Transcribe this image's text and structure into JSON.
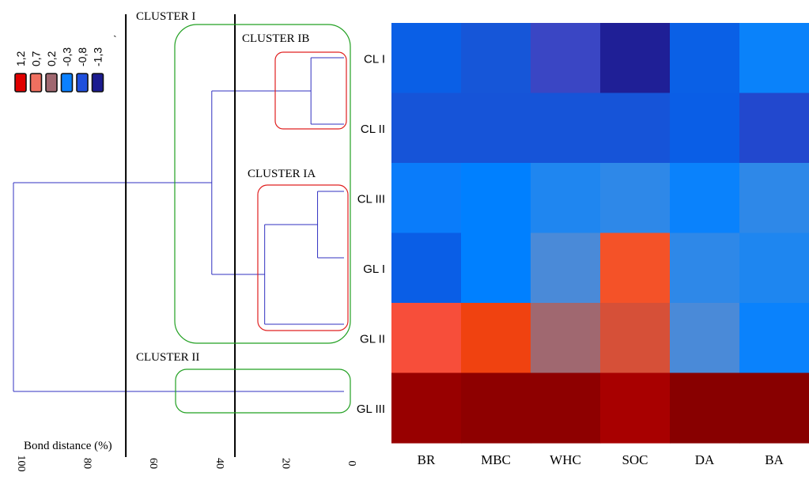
{
  "chart_data": [
    {
      "type": "dendrogram",
      "xlabel": "Bond distance (%)",
      "x_ticks": [
        100,
        80,
        60,
        40,
        20,
        0
      ],
      "xlim": [
        100,
        0
      ],
      "leaves": [
        "CL I",
        "CL II",
        "CL III",
        "GL I",
        "GL II",
        "GL III"
      ],
      "merges": [
        {
          "members": [
            "CL I",
            "CL II"
          ],
          "distance": 10
        },
        {
          "members": [
            "CL III",
            "GL I"
          ],
          "distance": 8
        },
        {
          "members": [
            "CL III",
            "GL I",
            "GL II"
          ],
          "distance": 24
        },
        {
          "members": [
            "CL I",
            "CL II",
            "CL III",
            "GL I",
            "GL II"
          ],
          "distance": 40
        },
        {
          "members": [
            "CL I",
            "CL II",
            "CL III",
            "GL I",
            "GL II",
            "GL III"
          ],
          "distance": 100
        }
      ],
      "cut_lines": [
        66,
        33
      ],
      "clusters": [
        {
          "label": "CLUSTER I",
          "members": [
            "CL I",
            "CL II",
            "CL III",
            "GL I",
            "GL II"
          ]
        },
        {
          "label": "CLUSTER IB",
          "members": [
            "CL I",
            "CL II"
          ]
        },
        {
          "label": "CLUSTER IA",
          "members": [
            "CL III",
            "GL I",
            "GL II"
          ]
        },
        {
          "label": "CLUSTER II",
          "members": [
            "GL III"
          ]
        }
      ],
      "stray_mark": "ˎ",
      "legend": [
        {
          "label": "1,2",
          "color": "#e00000"
        },
        {
          "label": "0,7",
          "color": "#f07060"
        },
        {
          "label": "0,2",
          "color": "#a06870"
        },
        {
          "label": "-0,3",
          "color": "#0a80ff"
        },
        {
          "label": "-0,8",
          "color": "#1f4fdc"
        },
        {
          "label": "-1,3",
          "color": "#1c1c90"
        }
      ]
    },
    {
      "type": "heatmap",
      "rows": [
        "CL I",
        "CL II",
        "CL III",
        "GL I",
        "GL II",
        "GL III"
      ],
      "columns": [
        "BR",
        "MBC",
        "WHC",
        "SOC",
        "DA",
        "BA"
      ],
      "values": [
        [
          -0.7,
          -0.8,
          -1.0,
          -1.3,
          -0.7,
          -0.4
        ],
        [
          -0.8,
          -0.8,
          -0.8,
          -0.8,
          -0.7,
          -0.9
        ],
        [
          -0.4,
          -0.3,
          -0.2,
          -0.1,
          -0.3,
          -0.1
        ],
        [
          -0.7,
          -0.3,
          0.0,
          0.8,
          -0.1,
          -0.2
        ],
        [
          0.8,
          0.9,
          0.2,
          0.6,
          0.0,
          -0.3
        ],
        [
          1.5,
          1.6,
          1.6,
          1.4,
          1.6,
          1.6
        ]
      ],
      "cell_colors": [
        [
          "#0a5fe6",
          "#1656d8",
          "#3a46c4",
          "#1f1f96",
          "#0a60e6",
          "#0a82fa"
        ],
        [
          "#1654d8",
          "#1654d8",
          "#1654d8",
          "#1654d8",
          "#0a5ee6",
          "#2248ce"
        ],
        [
          "#0a7cfa",
          "#0080ff",
          "#1f86f0",
          "#2e88e8",
          "#0a82fc",
          "#2e88e8"
        ],
        [
          "#0a5ee6",
          "#0080ff",
          "#4a8ad8",
          "#f45228",
          "#2e88e8",
          "#1e86f0"
        ],
        [
          "#f74e3a",
          "#f04210",
          "#a06870",
          "#d65038",
          "#4a8ad8",
          "#0a82fc"
        ],
        [
          "#980000",
          "#8e0000",
          "#8e0000",
          "#a80000",
          "#880000",
          "#880000"
        ]
      ]
    }
  ]
}
